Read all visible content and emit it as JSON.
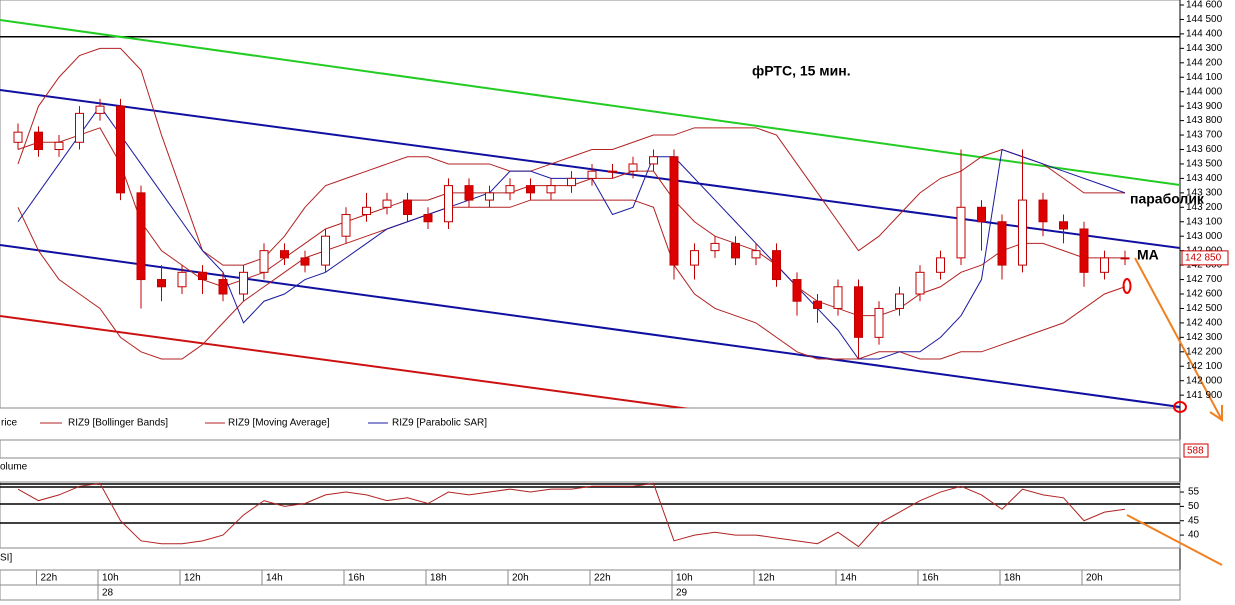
{
  "chart_data": {
    "type": "candlestick",
    "title": "фРТС,  15 мин.",
    "annotations": [
      "параболик",
      "MA"
    ],
    "legend": [
      "rice",
      "RIZ9 [Bollinger Bands]",
      "RIZ9 [Moving Average]",
      "RIZ9 [Parabolic SAR]"
    ],
    "panel_labels": [
      "olume",
      "SI]"
    ],
    "volume_label": "588",
    "ylim": [
      141850,
      144600
    ],
    "yticks": [
      {
        "value": 141900,
        "label": "141 900"
      },
      {
        "value": 142000,
        "label": "142 000"
      },
      {
        "value": 142100,
        "label": "142 100"
      },
      {
        "value": 142200,
        "label": "142 200"
      },
      {
        "value": 142300,
        "label": "142 300"
      },
      {
        "value": 142400,
        "label": "142 400"
      },
      {
        "value": 142500,
        "label": "142 500"
      },
      {
        "value": 142600,
        "label": "142 600"
      },
      {
        "value": 142700,
        "label": "142 700"
      },
      {
        "value": 142800,
        "label": "142 800"
      },
      {
        "value": 142900,
        "label": "142 900"
      },
      {
        "value": 143000,
        "label": "143 000"
      },
      {
        "value": 143100,
        "label": "143 100"
      },
      {
        "value": 143200,
        "label": "143 200"
      },
      {
        "value": 143300,
        "label": "143 300"
      },
      {
        "value": 143400,
        "label": "143 400"
      },
      {
        "value": 143500,
        "label": "143 500"
      },
      {
        "value": 143600,
        "label": "143 600"
      },
      {
        "value": 143700,
        "label": "143 700"
      },
      {
        "value": 143800,
        "label": "143 800"
      },
      {
        "value": 143900,
        "label": "143 900"
      },
      {
        "value": 144000,
        "label": "144 000"
      },
      {
        "value": 144100,
        "label": "144 100"
      },
      {
        "value": 144200,
        "label": "144 200"
      },
      {
        "value": 144300,
        "label": "144 300"
      },
      {
        "value": 144400,
        "label": "144 400"
      },
      {
        "value": 144500,
        "label": "144 500"
      },
      {
        "value": 144600,
        "label": "144 600"
      }
    ],
    "last_price": {
      "value": 142850,
      "label": "142 850"
    },
    "level_line": 144380,
    "trendlines": [
      {
        "color": "#22cc22",
        "start": 144496,
        "end": 143354
      },
      {
        "color": "#1010a0",
        "start": 144012,
        "end": 142918
      },
      {
        "color": "#1010a0",
        "start": 142939,
        "end": 141818
      },
      {
        "color": "#cc1111",
        "start": 142448,
        "end": 141346
      }
    ],
    "categories": [
      null,
      "22h",
      null,
      null,
      "10h",
      null,
      null,
      null,
      "12h",
      null,
      null,
      null,
      "14h",
      null,
      null,
      null,
      "16h",
      null,
      null,
      null,
      "18h",
      null,
      null,
      null,
      "20h",
      null,
      null,
      null,
      "22h",
      null,
      null,
      null,
      "10h",
      null,
      null,
      null,
      "12h",
      null,
      null,
      null,
      "14h",
      null,
      null,
      null,
      "16h",
      null,
      null,
      null,
      "18h",
      null,
      null,
      null,
      "20h",
      null,
      null
    ],
    "dates": [
      null,
      null,
      null,
      null,
      "28",
      null,
      null,
      null,
      null,
      null,
      null,
      null,
      null,
      null,
      null,
      null,
      null,
      null,
      null,
      null,
      null,
      null,
      null,
      null,
      null,
      null,
      null,
      null,
      null,
      null,
      null,
      null,
      "29",
      null,
      null,
      null,
      null,
      null,
      null,
      null,
      null,
      null,
      null,
      null,
      null,
      null,
      null,
      null,
      null,
      null,
      null,
      null,
      null,
      null,
      null
    ],
    "open": [
      143650,
      143720,
      143600,
      143650,
      143850,
      143900,
      143300,
      142700,
      142650,
      142750,
      142700,
      142600,
      142750,
      142900,
      142850,
      142800,
      143000,
      143150,
      143200,
      143250,
      143150,
      143100,
      143350,
      143250,
      143300,
      143350,
      143300,
      143350,
      143400,
      143450,
      143450,
      143500,
      143550,
      142800,
      142900,
      142950,
      142850,
      142900,
      142700,
      142550,
      142500,
      142650,
      142300,
      142500,
      142600,
      142750,
      142850,
      143200,
      143100,
      142800,
      143250,
      143100,
      143050,
      142750,
      142850
    ],
    "high": [
      143780,
      143760,
      143700,
      143900,
      143950,
      143950,
      143350,
      142800,
      142800,
      142800,
      142750,
      142800,
      142950,
      142950,
      142900,
      143050,
      143200,
      143300,
      143300,
      143300,
      143200,
      143400,
      143400,
      143350,
      143400,
      143400,
      143400,
      143450,
      143500,
      143500,
      143550,
      143600,
      143600,
      142950,
      143000,
      143000,
      142950,
      142950,
      142750,
      142600,
      142700,
      142700,
      142550,
      142650,
      142800,
      142900,
      143600,
      143250,
      143150,
      143600,
      143300,
      143150,
      143100,
      142900,
      142900
    ],
    "low": [
      143600,
      143550,
      143550,
      143600,
      143800,
      143250,
      142500,
      142550,
      142600,
      142600,
      142550,
      142550,
      142700,
      142800,
      142750,
      142750,
      142950,
      143100,
      143150,
      143100,
      143050,
      143050,
      143200,
      143200,
      143250,
      143250,
      143250,
      143300,
      143350,
      143400,
      143400,
      143450,
      142700,
      142700,
      142850,
      142800,
      142800,
      142650,
      142450,
      142400,
      142450,
      142150,
      142250,
      142450,
      142550,
      142700,
      142800,
      142900,
      142700,
      142750,
      143000,
      142950,
      142650,
      142700,
      142800
    ],
    "close": [
      143720,
      143600,
      143650,
      143850,
      143900,
      143300,
      142700,
      142650,
      142750,
      142700,
      142600,
      142750,
      142900,
      142850,
      142800,
      143000,
      143150,
      143200,
      143250,
      143150,
      143100,
      143350,
      143250,
      143300,
      143350,
      143300,
      143350,
      143400,
      143450,
      143450,
      143500,
      143550,
      142800,
      142900,
      142950,
      142850,
      142900,
      142700,
      142550,
      142500,
      142650,
      142300,
      142500,
      142600,
      142750,
      142850,
      143200,
      143100,
      142800,
      143250,
      143100,
      143050,
      142750,
      142850,
      142850
    ],
    "up_color": "#ffffff",
    "down_color": "#dd0000",
    "series": [
      {
        "color": "#b22222",
        "values": [
          143500,
          143900,
          144100,
          144250,
          144300,
          144300,
          144150,
          143700,
          143300,
          142900,
          142800,
          142800,
          142850,
          143000,
          143200,
          143350,
          143400,
          143450,
          143500,
          143550,
          143550,
          143500,
          143500,
          143500,
          143450,
          143450,
          143500,
          143550,
          143600,
          143600,
          143650,
          143700,
          143700,
          143750,
          143750,
          143750,
          143750,
          143700,
          143500,
          143300,
          143100,
          142900,
          143000,
          143150,
          143300,
          143400,
          143450,
          143550,
          143600,
          143550,
          143500,
          143400,
          143300,
          143300,
          143300
        ]
      },
      {
        "color": "#b22222",
        "values": [
          143200,
          142900,
          142700,
          142600,
          142500,
          142300,
          142200,
          142150,
          142150,
          142250,
          142400,
          142550,
          142650,
          142750,
          142850,
          142900,
          142950,
          143000,
          143050,
          143100,
          143150,
          143200,
          143200,
          143200,
          143200,
          143250,
          143250,
          143250,
          143250,
          143250,
          143250,
          143200,
          142800,
          142600,
          142500,
          142450,
          142400,
          142300,
          142200,
          142150,
          142150,
          142150,
          142200,
          142200,
          142150,
          142150,
          142200,
          142200,
          142250,
          142300,
          142350,
          142400,
          142500,
          142600,
          142650
        ]
      },
      {
        "color": "#b22222",
        "values": [
          143600,
          143650,
          143650,
          143700,
          143750,
          143500,
          143100,
          142900,
          142800,
          142700,
          142650,
          142700,
          142750,
          142850,
          142950,
          143050,
          143100,
          143150,
          143200,
          143250,
          143250,
          143300,
          143300,
          143300,
          143300,
          143350,
          143350,
          143350,
          143400,
          143400,
          143450,
          143450,
          143250,
          143100,
          143000,
          142950,
          142900,
          142800,
          142650,
          142550,
          142500,
          142450,
          142450,
          142500,
          142600,
          142650,
          142750,
          142800,
          142900,
          142950,
          142950,
          142900,
          142850,
          142850,
          142850
        ]
      },
      {
        "color": "#1a1aa0",
        "values": [
          143100,
          143300,
          143500,
          143700,
          143900,
          143700,
          143500,
          143300,
          143100,
          142900,
          142750,
          142400,
          142550,
          142600,
          142700,
          142750,
          142850,
          142950,
          143050,
          143100,
          143150,
          143200,
          143250,
          143300,
          143450,
          143450,
          143400,
          143400,
          143400,
          143150,
          143200,
          143550,
          143550,
          143400,
          143250,
          143100,
          142950,
          142800,
          142650,
          142500,
          142350,
          142150,
          142150,
          142200,
          142200,
          142300,
          142450,
          142700,
          143600,
          143550,
          143500,
          143450,
          143400,
          143350,
          143300
        ]
      }
    ],
    "rsi": {
      "color": "#b22222",
      "ylim": [
        35.5,
        58.5
      ],
      "yticks": [
        55,
        50,
        45,
        40
      ],
      "values": [
        56,
        52,
        54,
        57,
        58,
        45,
        38,
        37,
        37,
        38,
        40,
        47,
        52,
        50,
        51,
        54,
        55,
        54,
        52,
        53,
        51,
        55,
        54,
        55,
        56,
        55,
        56,
        56,
        57,
        57,
        57,
        58,
        38,
        40,
        41,
        40,
        40,
        39,
        38,
        37,
        41,
        36,
        44,
        48,
        52,
        55,
        57,
        54,
        49,
        56,
        54,
        53,
        45,
        48,
        49
      ]
    }
  }
}
